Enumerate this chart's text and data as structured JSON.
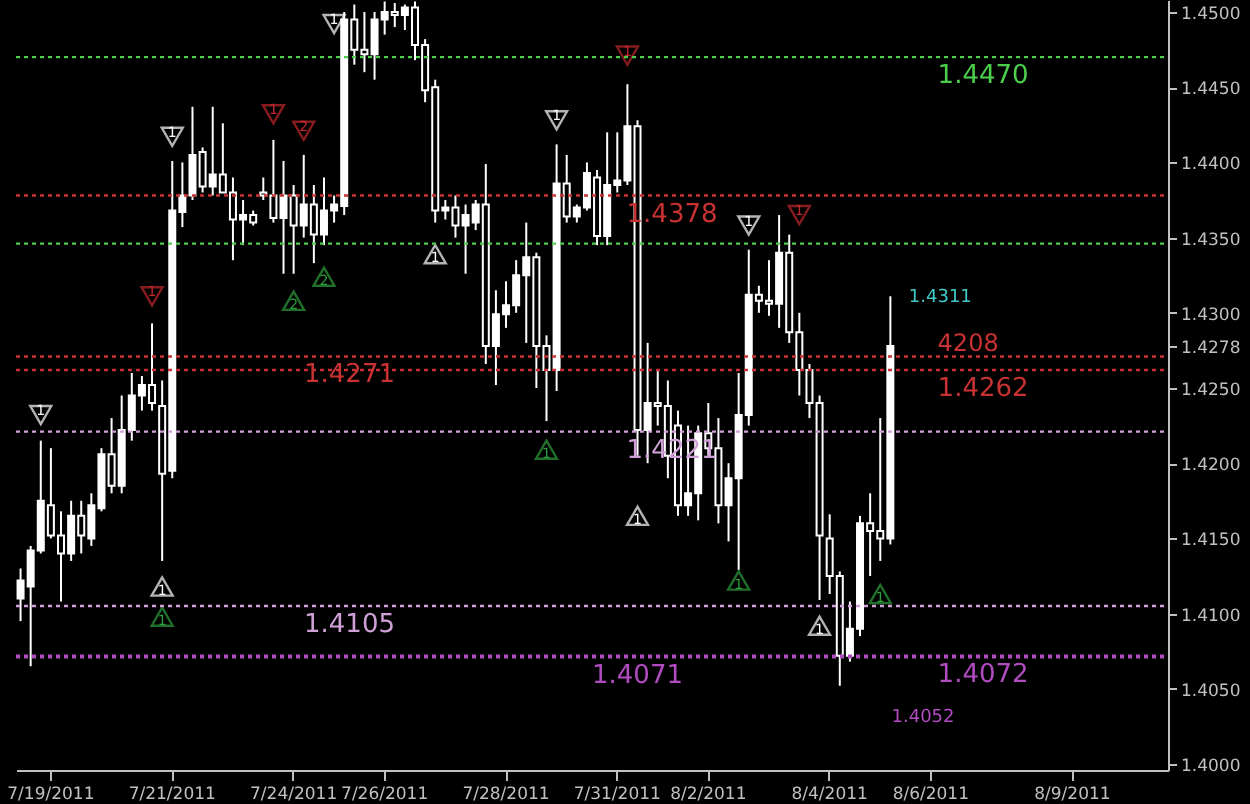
{
  "chart_data": {
    "type": "candlestick",
    "categories": [
      null,
      null,
      null,
      "7/19/2011",
      null,
      null,
      null,
      null,
      null,
      null,
      null,
      null,
      null,
      null,
      null,
      "7/21/2011",
      null,
      null,
      null,
      null,
      null,
      null,
      null,
      null,
      null,
      null,
      null,
      "7/24/2011",
      null,
      null,
      null,
      null,
      null,
      null,
      null,
      null,
      "7/26/2011",
      null,
      null,
      null,
      null,
      null,
      null,
      null,
      null,
      null,
      null,
      null,
      "7/28/2011",
      null,
      null,
      null,
      null,
      null,
      null,
      null,
      null,
      null,
      null,
      "7/31/2011",
      null,
      null,
      null,
      null,
      null,
      null,
      null,
      null,
      "8/2/2011",
      null,
      null,
      null,
      null,
      null,
      null,
      null,
      null,
      null,
      null,
      null,
      "8/4/2011",
      null,
      null,
      null,
      null,
      null,
      null,
      null,
      null,
      null,
      "8/6/2011",
      null,
      null,
      null,
      null,
      null,
      null,
      null,
      null,
      null,
      null,
      null,
      null,
      null,
      "8/9/2011",
      null,
      null,
      null,
      null,
      null,
      null,
      null,
      null,
      null
    ],
    "ohlc": [
      [
        1.411,
        1.413,
        1.4095,
        1.4122
      ],
      [
        1.4118,
        1.4145,
        1.4065,
        1.4142
      ],
      [
        1.4142,
        1.4215,
        1.414,
        1.4175
      ],
      [
        1.4172,
        1.421,
        1.415,
        1.4152
      ],
      [
        1.4152,
        1.4168,
        1.4108,
        1.414
      ],
      [
        1.414,
        1.4175,
        1.4135,
        1.4165
      ],
      [
        1.4165,
        1.4175,
        1.414,
        1.4152
      ],
      [
        1.415,
        1.418,
        1.4145,
        1.4172
      ],
      [
        1.417,
        1.421,
        1.4168,
        1.4206
      ],
      [
        1.4206,
        1.423,
        1.418,
        1.4185
      ],
      [
        1.4185,
        1.4245,
        1.418,
        1.4222
      ],
      [
        1.4222,
        1.426,
        1.4215,
        1.4245
      ],
      [
        1.4245,
        1.4258,
        1.4235,
        1.4252
      ],
      [
        1.4252,
        1.4293,
        1.4235,
        1.424
      ],
      [
        1.4238,
        1.4255,
        1.4135,
        1.4193
      ],
      [
        1.4195,
        1.4401,
        1.419,
        1.4368
      ],
      [
        1.4367,
        1.44,
        1.4357,
        1.4378
      ],
      [
        1.4378,
        1.4437,
        1.4375,
        1.4405
      ],
      [
        1.4407,
        1.441,
        1.438,
        1.4384
      ],
      [
        1.4384,
        1.4437,
        1.4378,
        1.4392
      ],
      [
        1.4392,
        1.4426,
        1.438,
        1.438
      ],
      [
        1.438,
        1.439,
        1.4335,
        1.4362
      ],
      [
        1.4362,
        1.4375,
        1.4345,
        1.4365
      ],
      [
        1.4365,
        1.4368,
        1.4358,
        1.436
      ],
      [
        1.438,
        1.439,
        1.4375,
        1.4378
      ],
      [
        1.4378,
        1.4415,
        1.436,
        1.4363
      ],
      [
        1.4363,
        1.4401,
        1.4326,
        1.4378
      ],
      [
        1.4378,
        1.4385,
        1.4326,
        1.4358
      ],
      [
        1.4358,
        1.4405,
        1.435,
        1.4372
      ],
      [
        1.4372,
        1.4385,
        1.4333,
        1.4352
      ],
      [
        1.4352,
        1.439,
        1.4345,
        1.4368
      ],
      [
        1.4368,
        1.4378,
        1.436,
        1.4372
      ],
      [
        1.4371,
        1.45,
        1.4365,
        1.4495
      ],
      [
        1.4495,
        1.4505,
        1.4465,
        1.4475
      ],
      [
        1.4475,
        1.45,
        1.446,
        1.4472
      ],
      [
        1.4472,
        1.45,
        1.4455,
        1.4495
      ],
      [
        1.4495,
        1.4507,
        1.4485,
        1.45
      ],
      [
        1.45,
        1.4506,
        1.449,
        1.4498
      ],
      [
        1.4498,
        1.4505,
        1.4488,
        1.4503
      ],
      [
        1.4503,
        1.4507,
        1.4468,
        1.4478
      ],
      [
        1.4478,
        1.4482,
        1.444,
        1.4448
      ],
      [
        1.445,
        1.4455,
        1.436,
        1.4368
      ],
      [
        1.4368,
        1.4375,
        1.4362,
        1.437
      ],
      [
        1.437,
        1.4378,
        1.435,
        1.4358
      ],
      [
        1.4358,
        1.4372,
        1.4326,
        1.4365
      ],
      [
        1.436,
        1.4375,
        1.4355,
        1.4372
      ],
      [
        1.4372,
        1.4399,
        1.4266,
        1.4278
      ],
      [
        1.4278,
        1.4315,
        1.4252,
        1.4299
      ],
      [
        1.4299,
        1.4321,
        1.429,
        1.4305
      ],
      [
        1.4305,
        1.4335,
        1.43,
        1.4325
      ],
      [
        1.4325,
        1.436,
        1.428,
        1.4337
      ],
      [
        1.4337,
        1.434,
        1.425,
        1.4278
      ],
      [
        1.4278,
        1.4285,
        1.4228,
        1.4262
      ],
      [
        1.4262,
        1.4412,
        1.4248,
        1.4386
      ],
      [
        1.4386,
        1.4405,
        1.436,
        1.4364
      ],
      [
        1.4364,
        1.4372,
        1.436,
        1.437
      ],
      [
        1.437,
        1.44,
        1.4368,
        1.4393
      ],
      [
        1.439,
        1.4395,
        1.4345,
        1.4351
      ],
      [
        1.4351,
        1.442,
        1.4345,
        1.4385
      ],
      [
        1.4385,
        1.442,
        1.438,
        1.4388
      ],
      [
        1.4388,
        1.4452,
        1.4385,
        1.4424
      ],
      [
        1.4424,
        1.4428,
        1.4205,
        1.4222
      ],
      [
        1.4222,
        1.428,
        1.42,
        1.424
      ],
      [
        1.424,
        1.4262,
        1.4225,
        1.4238
      ],
      [
        1.4238,
        1.4255,
        1.419,
        1.4205
      ],
      [
        1.4225,
        1.4235,
        1.4165,
        1.4172
      ],
      [
        1.4172,
        1.4225,
        1.4165,
        1.418
      ],
      [
        1.418,
        1.4225,
        1.4162,
        1.422
      ],
      [
        1.422,
        1.424,
        1.4205,
        1.421
      ],
      [
        1.421,
        1.423,
        1.416,
        1.4172
      ],
      [
        1.4172,
        1.42,
        1.4148,
        1.419
      ],
      [
        1.419,
        1.426,
        1.4129,
        1.4232
      ],
      [
        1.4232,
        1.4342,
        1.4225,
        1.4312
      ],
      [
        1.4312,
        1.4318,
        1.43,
        1.4308
      ],
      [
        1.4308,
        1.4335,
        1.4298,
        1.4306
      ],
      [
        1.4306,
        1.4365,
        1.429,
        1.434
      ],
      [
        1.434,
        1.4352,
        1.428,
        1.4287
      ],
      [
        1.4287,
        1.43,
        1.4245,
        1.4262
      ],
      [
        1.4262,
        1.4266,
        1.423,
        1.424
      ],
      [
        1.424,
        1.4245,
        1.4109,
        1.4152
      ],
      [
        1.415,
        1.4166,
        1.4113,
        1.4125
      ],
      [
        1.4125,
        1.4128,
        1.4052,
        1.4072
      ],
      [
        1.4072,
        1.4108,
        1.4068,
        1.409
      ],
      [
        1.409,
        1.4165,
        1.4085,
        1.416
      ],
      [
        1.416,
        1.418,
        1.4125,
        1.4155
      ],
      [
        1.4155,
        1.423,
        1.4135,
        1.415
      ],
      [
        1.415,
        1.4311,
        1.4146,
        1.4278
      ],
      null,
      null,
      null,
      null,
      null,
      null,
      null,
      null,
      null,
      null,
      null,
      null,
      null,
      null,
      null,
      null,
      null,
      null,
      null,
      null,
      null,
      null,
      null,
      null,
      null,
      null,
      null
    ],
    "series": [
      {
        "type": "scatter",
        "name": "1",
        "marker": "triangle",
        "color": "#ffffff",
        "values": [
          null,
          null,
          1.4232,
          null,
          null,
          null,
          null,
          null,
          null,
          null,
          null,
          null,
          null,
          null,
          null,
          1.4417,
          null,
          null,
          null,
          null,
          null,
          null,
          null,
          null,
          null,
          null,
          null,
          null,
          null,
          null,
          null,
          1.4492,
          null,
          null,
          null,
          null,
          null,
          null,
          null,
          null,
          null,
          null,
          null,
          null,
          null,
          null,
          null,
          null,
          null,
          null,
          null,
          null,
          null,
          1.4428,
          null,
          null,
          null,
          null,
          null,
          null,
          null,
          null,
          null,
          null,
          null,
          null,
          null,
          null,
          null,
          null,
          null,
          null,
          1.4358,
          null,
          null,
          null,
          null,
          null,
          null,
          null,
          null,
          null,
          null,
          null,
          null,
          null,
          null,
          null,
          null,
          null,
          null,
          null,
          null,
          null,
          null,
          null,
          null,
          null,
          null,
          null,
          null,
          null,
          null,
          null,
          null,
          null,
          null,
          null,
          null,
          null,
          null,
          null,
          null,
          null
        ]
      },
      {
        "type": "scatter",
        "name": "1",
        "marker": "triangle",
        "color": "#ffffff",
        "values": [
          null,
          null,
          null,
          null,
          null,
          null,
          null,
          null,
          null,
          null,
          null,
          null,
          null,
          null,
          1.4118,
          null,
          null,
          null,
          null,
          null,
          null,
          null,
          null,
          null,
          null,
          null,
          null,
          null,
          null,
          null,
          null,
          null,
          null,
          null,
          null,
          null,
          null,
          null,
          null,
          null,
          null,
          1.4339,
          null,
          null,
          null,
          null,
          null,
          null,
          null,
          null,
          null,
          null,
          null,
          null,
          null,
          null,
          null,
          null,
          null,
          null,
          null,
          1.4165,
          null,
          null,
          null,
          null,
          null,
          null,
          null,
          null,
          null,
          null,
          null,
          null,
          null,
          null,
          null,
          null,
          null,
          1.4092,
          null,
          null,
          null,
          null,
          null,
          null,
          null,
          null,
          null,
          null,
          null,
          null,
          null,
          null,
          null,
          null,
          null,
          null,
          null,
          null,
          null,
          null,
          null,
          null,
          null,
          null,
          null,
          null,
          null,
          null,
          null,
          null,
          null,
          null
        ]
      },
      {
        "type": "scatter",
        "name": "1",
        "marker": "triangle",
        "color": "#c0282d",
        "values": [
          null,
          null,
          null,
          null,
          null,
          null,
          null,
          null,
          null,
          null,
          null,
          null,
          null,
          1.4311,
          null,
          null,
          null,
          null,
          null,
          null,
          null,
          null,
          null,
          null,
          null,
          1.4432,
          null,
          null,
          null,
          null,
          null,
          null,
          null,
          null,
          null,
          null,
          null,
          null,
          null,
          null,
          null,
          null,
          null,
          null,
          null,
          null,
          null,
          null,
          null,
          null,
          null,
          null,
          null,
          null,
          null,
          null,
          null,
          null,
          null,
          null,
          1.4471,
          null,
          null,
          null,
          null,
          null,
          null,
          null,
          null,
          null,
          null,
          null,
          null,
          null,
          null,
          null,
          null,
          1.4365,
          null,
          null,
          null,
          null,
          null,
          null,
          null,
          null,
          null,
          null,
          null,
          null,
          null,
          null,
          null,
          null,
          null,
          null,
          null,
          null,
          null,
          null,
          null,
          null,
          null,
          null,
          null,
          null,
          null,
          null,
          null,
          null,
          null,
          null,
          null,
          null
        ]
      },
      {
        "type": "scatter",
        "name": "2",
        "marker": "triangle",
        "color": "#c0282d",
        "values": [
          null,
          null,
          null,
          null,
          null,
          null,
          null,
          null,
          null,
          null,
          null,
          null,
          null,
          null,
          null,
          null,
          null,
          null,
          null,
          null,
          null,
          null,
          null,
          null,
          null,
          null,
          null,
          null,
          1.4421,
          null,
          null,
          null,
          null,
          null,
          null,
          null,
          null,
          null,
          null,
          null,
          null,
          null,
          null,
          null,
          null,
          null,
          null,
          null,
          null,
          null,
          null,
          null,
          null,
          null,
          null,
          null,
          null,
          null,
          null,
          null,
          null,
          null,
          null,
          null,
          null,
          null,
          null,
          null,
          null,
          null,
          null,
          null,
          null,
          null,
          null,
          null,
          null,
          null,
          null,
          null,
          null,
          null,
          null,
          null,
          null,
          null,
          null,
          null,
          null,
          null,
          null,
          null,
          null,
          null,
          null,
          null,
          null,
          null,
          null,
          null,
          null,
          null,
          null,
          null,
          null,
          null,
          null,
          null,
          null,
          null,
          null,
          null,
          null,
          null
        ]
      },
      {
        "type": "scatter",
        "name": "1",
        "marker": "triangle",
        "color": "#2e9e3e",
        "values": [
          null,
          null,
          null,
          null,
          null,
          null,
          null,
          null,
          null,
          null,
          null,
          null,
          null,
          null,
          1.4098,
          null,
          null,
          null,
          null,
          null,
          null,
          null,
          null,
          null,
          null,
          null,
          null,
          null,
          null,
          null,
          null,
          null,
          null,
          null,
          null,
          null,
          null,
          null,
          null,
          null,
          null,
          null,
          null,
          null,
          null,
          null,
          null,
          null,
          null,
          null,
          null,
          null,
          1.4209,
          null,
          null,
          null,
          null,
          null,
          null,
          null,
          null,
          null,
          null,
          null,
          null,
          null,
          null,
          null,
          null,
          null,
          null,
          1.4122,
          null,
          null,
          null,
          null,
          null,
          null,
          null,
          null,
          null,
          null,
          null,
          null,
          null,
          1.4113,
          null,
          null,
          null,
          null,
          null,
          null,
          null,
          null,
          null,
          null,
          null,
          null,
          null,
          null,
          null,
          null,
          null,
          null,
          null,
          null,
          null,
          null,
          null,
          null,
          null,
          null,
          null,
          null
        ]
      },
      {
        "type": "scatter",
        "name": "2",
        "marker": "triangle",
        "color": "#2e9e3e",
        "values": [
          null,
          null,
          null,
          null,
          null,
          null,
          null,
          null,
          null,
          null,
          null,
          null,
          null,
          null,
          null,
          null,
          null,
          null,
          null,
          null,
          null,
          null,
          null,
          null,
          null,
          null,
          null,
          1.4308,
          null,
          null,
          1.4324,
          null,
          null,
          null,
          null,
          null,
          null,
          null,
          null,
          null,
          null,
          null,
          null,
          null,
          null,
          null,
          null,
          null,
          null,
          null,
          null,
          null,
          null,
          null,
          null,
          null,
          null,
          null,
          null,
          null,
          null,
          null,
          null,
          null,
          null,
          null,
          null,
          null,
          null,
          null,
          null,
          null,
          null,
          null,
          null,
          null,
          null,
          null,
          null,
          null,
          null,
          null,
          null,
          null,
          null,
          null,
          null,
          null,
          null,
          null,
          null,
          null,
          null,
          null,
          null,
          null,
          null,
          null,
          null,
          null,
          null,
          null,
          null,
          null,
          null,
          null,
          null,
          null,
          null,
          null,
          null,
          null,
          null,
          null
        ]
      }
    ],
    "ylim": [
      1.3996,
      1.4508
    ],
    "yticks": [
      {
        "value": 1.4,
        "label": "1.4000"
      },
      {
        "value": 1.405,
        "label": "1.4050"
      },
      {
        "value": 1.41,
        "label": "1.4100"
      },
      {
        "value": 1.415,
        "label": "1.4150"
      },
      {
        "value": 1.42,
        "label": "1.4200"
      },
      {
        "value": 1.425,
        "label": "1.4250"
      },
      {
        "value": 1.4278,
        "label": "1.4278"
      },
      {
        "value": 1.43,
        "label": "1.4300"
      },
      {
        "value": 1.435,
        "label": "1.4350"
      },
      {
        "value": 1.44,
        "label": "1.4400"
      },
      {
        "value": 1.445,
        "label": "1.4450"
      },
      {
        "value": 1.45,
        "label": "1.4500"
      }
    ],
    "ref_lines": [
      {
        "axis": "y",
        "value": 1.4346,
        "color": "#4ccf4c",
        "line_style": "dotted"
      },
      {
        "axis": "y",
        "value": 1.447,
        "label": "1.4470",
        "color": "#4ccf4c",
        "line_style": "dotted"
      },
      {
        "axis": "y",
        "value": 1.4378,
        "label": "1.4378",
        "color": "#c83232",
        "line_style": "dotted"
      },
      {
        "axis": "y",
        "value": 1.4271,
        "label": "1.4271",
        "color": "#c83232",
        "line_style": "dotted"
      },
      {
        "axis": "y",
        "value": 1.4262,
        "label": "1.4262",
        "color": "#c83232",
        "line_style": "dotted"
      },
      {
        "axis": "y",
        "value": 1.4221,
        "label": "1.4221",
        "color": "#d0a0d8",
        "line_style": "dotted"
      },
      {
        "axis": "y",
        "value": 1.4105,
        "label": "1.4105",
        "color": "#d0a0d8",
        "line_style": "dotted"
      },
      {
        "axis": "y",
        "value": 1.4071,
        "label": "1.4071",
        "color": "#b04cc0",
        "line_style": "dotted"
      },
      {
        "axis": "y",
        "value": 1.4072,
        "label": "1.4072",
        "color": "#b04cc0",
        "line_style": "dotted"
      }
    ],
    "annotations": [
      "1.4311",
      "4208",
      "1.4052"
    ]
  }
}
